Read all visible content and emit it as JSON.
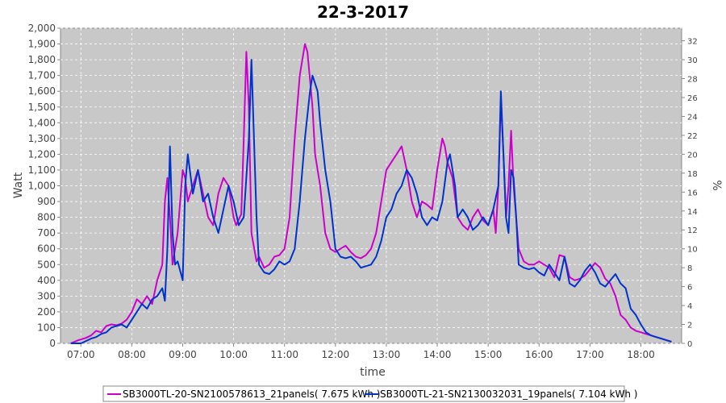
{
  "chart_data": {
    "type": "line",
    "title": "22-3-2017",
    "xlabel": "time",
    "ylabel": "Watt",
    "y2label": "%",
    "xlim": [
      6.6,
      18.8
    ],
    "ylim": [
      0,
      2000
    ],
    "y2lim": [
      0,
      33.33
    ],
    "x_ticks": [
      7,
      8,
      9,
      10,
      11,
      12,
      13,
      14,
      15,
      16,
      17,
      18
    ],
    "x_tick_labels": [
      "07:00",
      "08:00",
      "09:00",
      "10:00",
      "11:00",
      "12:00",
      "13:00",
      "14:00",
      "15:00",
      "16:00",
      "17:00",
      "18:00"
    ],
    "y_ticks": [
      0,
      100,
      200,
      300,
      400,
      500,
      600,
      700,
      800,
      900,
      1000,
      1100,
      1200,
      1300,
      1400,
      1500,
      1600,
      1700,
      1800,
      1900,
      2000
    ],
    "y_tick_labels": [
      "0",
      "100",
      "200",
      "300",
      "400",
      "500",
      "600",
      "700",
      "800",
      "900",
      "1,000",
      "1,100",
      "1,200",
      "1,300",
      "1,400",
      "1,500",
      "1,600",
      "1,700",
      "1,800",
      "1,900",
      "2,000"
    ],
    "y2_ticks": [
      0,
      2,
      4,
      6,
      8,
      10,
      12,
      14,
      16,
      18,
      20,
      22,
      24,
      26,
      28,
      30,
      32
    ],
    "grid": true,
    "legend_position": "bottom",
    "plot_background": "#c8c8c8",
    "series": [
      {
        "name": "SB3000TL-20-SN2100578613_21panels( 7.675 kWh )",
        "color": "#cc00cc",
        "x": [
          6.8,
          6.95,
          7.1,
          7.2,
          7.3,
          7.4,
          7.5,
          7.6,
          7.7,
          7.8,
          7.9,
          8.0,
          8.1,
          8.2,
          8.3,
          8.4,
          8.5,
          8.6,
          8.65,
          8.7,
          8.75,
          8.8,
          8.9,
          9.0,
          9.05,
          9.1,
          9.2,
          9.3,
          9.4,
          9.5,
          9.6,
          9.7,
          9.8,
          9.9,
          10.0,
          10.05,
          10.15,
          10.2,
          10.25,
          10.3,
          10.35,
          10.45,
          10.5,
          10.6,
          10.7,
          10.8,
          10.9,
          11.0,
          11.1,
          11.2,
          11.3,
          11.4,
          11.45,
          11.55,
          11.6,
          11.7,
          11.8,
          11.9,
          12.0,
          12.1,
          12.2,
          12.3,
          12.4,
          12.5,
          12.6,
          12.7,
          12.8,
          12.9,
          13.0,
          13.1,
          13.2,
          13.3,
          13.4,
          13.5,
          13.6,
          13.7,
          13.8,
          13.9,
          14.0,
          14.1,
          14.15,
          14.2,
          14.25,
          14.3,
          14.4,
          14.5,
          14.6,
          14.7,
          14.8,
          14.9,
          15.0,
          15.1,
          15.15,
          15.2,
          15.25,
          15.3,
          15.35,
          15.4,
          15.45,
          15.5,
          15.6,
          15.7,
          15.8,
          15.9,
          16.0,
          16.1,
          16.2,
          16.3,
          16.4,
          16.5,
          16.6,
          16.7,
          16.8,
          16.9,
          17.0,
          17.1,
          17.2,
          17.3,
          17.4,
          17.5,
          17.6,
          17.7,
          17.8,
          17.9,
          18.0,
          18.1,
          18.2,
          18.3,
          18.4,
          18.5,
          18.6
        ],
        "y": [
          0,
          20,
          35,
          50,
          80,
          70,
          110,
          120,
          115,
          125,
          150,
          200,
          280,
          250,
          300,
          250,
          400,
          500,
          900,
          1050,
          800,
          500,
          700,
          1100,
          1050,
          900,
          1000,
          1100,
          950,
          800,
          750,
          950,
          1050,
          1000,
          800,
          750,
          820,
          1300,
          1850,
          1500,
          700,
          520,
          550,
          480,
          500,
          550,
          560,
          600,
          800,
          1300,
          1700,
          1900,
          1850,
          1500,
          1200,
          1000,
          700,
          600,
          580,
          600,
          620,
          580,
          550,
          540,
          560,
          600,
          700,
          900,
          1100,
          1150,
          1200,
          1250,
          1100,
          900,
          800,
          900,
          880,
          850,
          1100,
          1300,
          1250,
          1150,
          1100,
          1050,
          800,
          750,
          720,
          800,
          850,
          780,
          750,
          850,
          700,
          1000,
          1550,
          1200,
          800,
          1000,
          1350,
          1000,
          600,
          520,
          500,
          500,
          520,
          500,
          480,
          420,
          560,
          550,
          420,
          400,
          410,
          430,
          470,
          510,
          480,
          410,
          380,
          300,
          180,
          150,
          100,
          80,
          70,
          60,
          50,
          40,
          30,
          20,
          10
        ]
      },
      {
        "name": "SB3000TL-21-SN2130032031_19panels( 7.104 kWh )",
        "color": "#0033cc",
        "x": [
          6.8,
          7.0,
          7.1,
          7.2,
          7.3,
          7.4,
          7.5,
          7.6,
          7.7,
          7.8,
          7.9,
          8.0,
          8.1,
          8.2,
          8.3,
          8.4,
          8.5,
          8.6,
          8.65,
          8.7,
          8.75,
          8.8,
          8.85,
          8.9,
          9.0,
          9.05,
          9.1,
          9.2,
          9.3,
          9.4,
          9.5,
          9.6,
          9.7,
          9.8,
          9.9,
          10.0,
          10.1,
          10.2,
          10.3,
          10.35,
          10.45,
          10.5,
          10.6,
          10.7,
          10.8,
          10.9,
          11.0,
          11.1,
          11.2,
          11.3,
          11.4,
          11.5,
          11.55,
          11.65,
          11.7,
          11.8,
          11.9,
          12.0,
          12.1,
          12.2,
          12.3,
          12.4,
          12.5,
          12.6,
          12.7,
          12.8,
          12.9,
          13.0,
          13.1,
          13.2,
          13.3,
          13.4,
          13.5,
          13.6,
          13.7,
          13.8,
          13.9,
          14.0,
          14.1,
          14.2,
          14.25,
          14.3,
          14.35,
          14.4,
          14.5,
          14.6,
          14.7,
          14.8,
          14.9,
          15.0,
          15.1,
          15.2,
          15.25,
          15.3,
          15.35,
          15.4,
          15.45,
          15.5,
          15.55,
          15.6,
          15.7,
          15.8,
          15.9,
          16.0,
          16.1,
          16.2,
          16.3,
          16.4,
          16.5,
          16.6,
          16.7,
          16.8,
          16.9,
          17.0,
          17.1,
          17.2,
          17.3,
          17.4,
          17.5,
          17.6,
          17.7,
          17.8,
          17.9,
          18.0,
          18.1,
          18.2,
          18.3,
          18.4,
          18.5,
          18.6
        ],
        "y": [
          0,
          0,
          15,
          30,
          40,
          60,
          70,
          100,
          110,
          120,
          100,
          150,
          200,
          250,
          220,
          280,
          300,
          350,
          270,
          600,
          1250,
          700,
          500,
          520,
          400,
          1000,
          1200,
          950,
          1100,
          900,
          950,
          800,
          700,
          850,
          1000,
          900,
          750,
          800,
          1300,
          1800,
          800,
          500,
          450,
          440,
          470,
          520,
          500,
          520,
          600,
          900,
          1300,
          1600,
          1700,
          1600,
          1400,
          1100,
          900,
          600,
          550,
          540,
          550,
          520,
          480,
          490,
          500,
          550,
          650,
          800,
          850,
          950,
          1000,
          1100,
          1050,
          950,
          800,
          750,
          800,
          780,
          900,
          1150,
          1200,
          1100,
          1000,
          800,
          850,
          800,
          720,
          750,
          800,
          750,
          850,
          1000,
          1600,
          1200,
          800,
          700,
          1100,
          1050,
          800,
          500,
          480,
          470,
          480,
          450,
          430,
          500,
          450,
          400,
          550,
          380,
          360,
          400,
          460,
          500,
          450,
          380,
          360,
          400,
          440,
          380,
          350,
          220,
          180,
          120,
          70,
          50,
          40,
          30,
          20,
          10
        ]
      }
    ]
  },
  "legend": {
    "items": [
      {
        "label": "SB3000TL-20-SN2100578613_21panels( 7.675 kWh )",
        "color": "#cc00cc"
      },
      {
        "label": "SB3000TL-21-SN2130032031_19panels( 7.104 kWh )",
        "color": "#0033cc"
      }
    ]
  }
}
